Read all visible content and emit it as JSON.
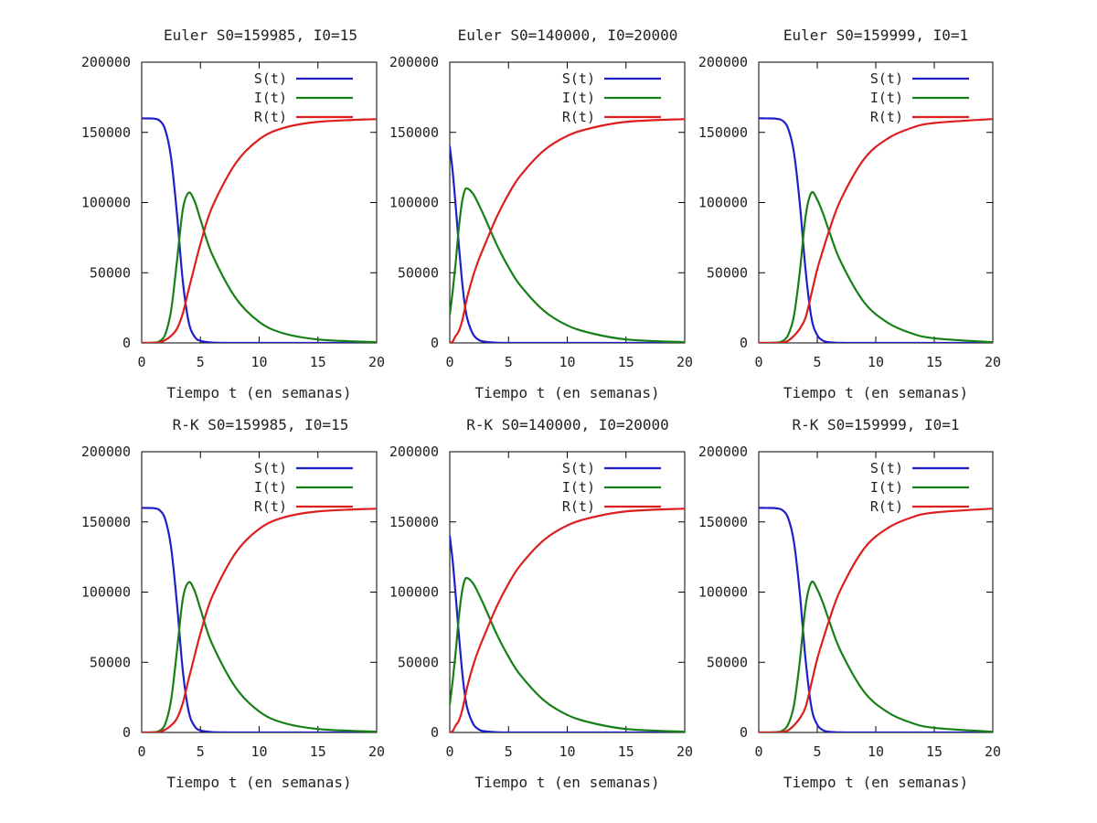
{
  "colors": {
    "S": "#1f1fc8",
    "I": "#168016",
    "R": "#dc1e1e"
  },
  "chart_data": [
    {
      "type": "line",
      "title": "Euler S0=159985, I0=15",
      "xlabel": "Tiempo t (en semanas)",
      "ylabel": "",
      "xlim": [
        0,
        20
      ],
      "ylim": [
        0,
        200000
      ],
      "xticks": [
        0,
        5,
        10,
        15,
        20
      ],
      "yticks": [
        0,
        50000,
        100000,
        150000,
        200000
      ],
      "legend": "top-right",
      "grid": false,
      "series": [
        {
          "name": "S(t)",
          "key": "S",
          "x": [
            0,
            0.5,
            1,
            1.5,
            2,
            2.5,
            3,
            3.5,
            4,
            4.5,
            5,
            6,
            8,
            10,
            12,
            15,
            20
          ],
          "values": [
            159985,
            159950,
            159800,
            158500,
            152000,
            132000,
            92000,
            44000,
            15000,
            4500,
            1500,
            250,
            20,
            0,
            0,
            0,
            0
          ]
        },
        {
          "name": "I(t)",
          "key": "I",
          "x": [
            0,
            0.5,
            1,
            1.5,
            2,
            2.5,
            3,
            3.5,
            4,
            4.5,
            5,
            6,
            8,
            10,
            12,
            15,
            20
          ],
          "values": [
            15,
            45,
            180,
            1100,
            6000,
            23000,
            58000,
            95000,
            107000,
            101000,
            88000,
            63000,
            32000,
            15000,
            7000,
            2500,
            500
          ]
        },
        {
          "name": "R(t)",
          "key": "R",
          "x": [
            0,
            0.5,
            1,
            1.5,
            2,
            2.5,
            3,
            3.5,
            4,
            4.5,
            5,
            6,
            8,
            10,
            12,
            15,
            20
          ],
          "values": [
            0,
            5,
            20,
            400,
            2000,
            5000,
            10000,
            21000,
            38000,
            54500,
            70500,
            96750,
            127980,
            145000,
            153000,
            157500,
            159500
          ]
        }
      ]
    },
    {
      "type": "line",
      "title": "Euler S0=140000, I0=20000",
      "xlabel": "Tiempo t (en semanas)",
      "ylabel": "",
      "xlim": [
        0,
        20
      ],
      "ylim": [
        0,
        200000
      ],
      "xticks": [
        0,
        5,
        10,
        15,
        20
      ],
      "yticks": [
        0,
        50000,
        100000,
        150000,
        200000
      ],
      "legend": "top-right",
      "grid": false,
      "series": [
        {
          "name": "S(t)",
          "key": "S",
          "x": [
            0,
            0.25,
            0.5,
            0.75,
            1,
            1.25,
            1.5,
            2,
            2.5,
            3,
            4,
            5,
            6,
            8,
            10,
            20
          ],
          "values": [
            140000,
            122000,
            98000,
            72000,
            48000,
            29000,
            17000,
            6000,
            2000,
            800,
            150,
            30,
            0,
            0,
            0,
            0
          ]
        },
        {
          "name": "I(t)",
          "key": "I",
          "x": [
            0,
            0.25,
            0.5,
            0.75,
            1,
            1.25,
            1.5,
            2,
            2.5,
            3,
            4,
            5,
            6,
            8,
            10,
            12,
            15,
            20
          ],
          "values": [
            20000,
            37000,
            57000,
            80000,
            98000,
            108000,
            110000,
            106000,
            98000,
            89000,
            70000,
            54000,
            41000,
            23000,
            12500,
            7000,
            2500,
            500
          ]
        },
        {
          "name": "R(t)",
          "key": "R",
          "x": [
            0,
            0.25,
            0.5,
            0.75,
            1,
            1.25,
            1.5,
            2,
            2.5,
            3,
            4,
            5,
            6,
            8,
            10,
            12,
            15,
            20
          ],
          "values": [
            0,
            1000,
            5000,
            8000,
            14000,
            23000,
            33000,
            48000,
            60000,
            70200,
            89850,
            105970,
            119000,
            137000,
            147500,
            153000,
            157500,
            159500
          ]
        }
      ]
    },
    {
      "type": "line",
      "title": "Euler S0=159999, I0=1",
      "xlabel": "Tiempo t (en semanas)",
      "ylabel": "",
      "xlim": [
        0,
        20
      ],
      "ylim": [
        0,
        200000
      ],
      "xticks": [
        0,
        5,
        10,
        15,
        20
      ],
      "yticks": [
        0,
        50000,
        100000,
        150000,
        200000
      ],
      "legend": "top-right",
      "grid": false,
      "series": [
        {
          "name": "S(t)",
          "key": "S",
          "x": [
            0,
            0.5,
            1,
            1.5,
            2,
            2.5,
            3,
            3.5,
            4,
            4.5,
            5,
            5.5,
            6,
            7,
            9,
            12,
            20
          ],
          "values": [
            159999,
            159990,
            159950,
            159700,
            158500,
            153000,
            136000,
            100000,
            52000,
            18000,
            5500,
            1600,
            500,
            60,
            0,
            0,
            0
          ]
        },
        {
          "name": "I(t)",
          "key": "I",
          "x": [
            0,
            0.5,
            1,
            1.5,
            2,
            2.5,
            3,
            3.5,
            4,
            4.5,
            5,
            5.5,
            6,
            7,
            9,
            11,
            13,
            15,
            20
          ],
          "values": [
            1,
            8,
            40,
            250,
            1200,
            5500,
            19000,
            50000,
            90000,
            107000,
            102000,
            92000,
            80000,
            58000,
            29000,
            14500,
            7000,
            3300,
            500
          ]
        },
        {
          "name": "R(t)",
          "key": "R",
          "x": [
            0,
            0.5,
            1,
            1.5,
            2,
            2.5,
            3,
            3.5,
            4,
            4.5,
            5,
            5.5,
            6,
            7,
            9,
            11,
            13,
            15,
            20
          ],
          "values": [
            0,
            2,
            10,
            50,
            300,
            1500,
            5000,
            10000,
            18000,
            35000,
            52500,
            66400,
            79500,
            101900,
            131000,
            145500,
            153000,
            156700,
            159500
          ]
        }
      ]
    },
    {
      "type": "line",
      "title": "R-K S0=159985, I0=15",
      "xlabel": "Tiempo t (en semanas)",
      "ylabel": "",
      "xlim": [
        0,
        20
      ],
      "ylim": [
        0,
        200000
      ],
      "xticks": [
        0,
        5,
        10,
        15,
        20
      ],
      "yticks": [
        0,
        50000,
        100000,
        150000,
        200000
      ],
      "legend": "top-right",
      "grid": false,
      "series": [
        {
          "name": "S(t)",
          "key": "S",
          "x": [
            0,
            0.5,
            1,
            1.5,
            2,
            2.5,
            3,
            3.5,
            4,
            4.5,
            5,
            6,
            8,
            10,
            12,
            15,
            20
          ],
          "values": [
            159985,
            159950,
            159800,
            158500,
            152000,
            132000,
            92000,
            44000,
            15000,
            4500,
            1500,
            250,
            20,
            0,
            0,
            0,
            0
          ]
        },
        {
          "name": "I(t)",
          "key": "I",
          "x": [
            0,
            0.5,
            1,
            1.5,
            2,
            2.5,
            3,
            3.5,
            4,
            4.5,
            5,
            6,
            8,
            10,
            12,
            15,
            20
          ],
          "values": [
            15,
            45,
            180,
            1100,
            6000,
            23000,
            58000,
            95000,
            107000,
            101000,
            88000,
            63000,
            32000,
            15000,
            7000,
            2500,
            500
          ]
        },
        {
          "name": "R(t)",
          "key": "R",
          "x": [
            0,
            0.5,
            1,
            1.5,
            2,
            2.5,
            3,
            3.5,
            4,
            4.5,
            5,
            6,
            8,
            10,
            12,
            15,
            20
          ],
          "values": [
            0,
            5,
            20,
            400,
            2000,
            5000,
            10000,
            21000,
            38000,
            54500,
            70500,
            96750,
            127980,
            145000,
            153000,
            157500,
            159500
          ]
        }
      ]
    },
    {
      "type": "line",
      "title": "R-K S0=140000, I0=20000",
      "xlabel": "Tiempo t (en semanas)",
      "ylabel": "",
      "xlim": [
        0,
        20
      ],
      "ylim": [
        0,
        200000
      ],
      "xticks": [
        0,
        5,
        10,
        15,
        20
      ],
      "yticks": [
        0,
        50000,
        100000,
        150000,
        200000
      ],
      "legend": "top-right",
      "grid": false,
      "series": [
        {
          "name": "S(t)",
          "key": "S",
          "x": [
            0,
            0.25,
            0.5,
            0.75,
            1,
            1.25,
            1.5,
            2,
            2.5,
            3,
            4,
            5,
            6,
            8,
            10,
            20
          ],
          "values": [
            140000,
            122000,
            98000,
            72000,
            48000,
            29000,
            17000,
            6000,
            2000,
            800,
            150,
            30,
            0,
            0,
            0,
            0
          ]
        },
        {
          "name": "I(t)",
          "key": "I",
          "x": [
            0,
            0.25,
            0.5,
            0.75,
            1,
            1.25,
            1.5,
            2,
            2.5,
            3,
            4,
            5,
            6,
            8,
            10,
            12,
            15,
            20
          ],
          "values": [
            20000,
            37000,
            57000,
            80000,
            98000,
            108000,
            110000,
            106000,
            98000,
            89000,
            70000,
            54000,
            41000,
            23000,
            12500,
            7000,
            2500,
            500
          ]
        },
        {
          "name": "R(t)",
          "key": "R",
          "x": [
            0,
            0.25,
            0.5,
            0.75,
            1,
            1.25,
            1.5,
            2,
            2.5,
            3,
            4,
            5,
            6,
            8,
            10,
            12,
            15,
            20
          ],
          "values": [
            0,
            1000,
            5000,
            8000,
            14000,
            23000,
            33000,
            48000,
            60000,
            70200,
            89850,
            105970,
            119000,
            137000,
            147500,
            153000,
            157500,
            159500
          ]
        }
      ]
    },
    {
      "type": "line",
      "title": "R-K S0=159999, I0=1",
      "xlabel": "Tiempo t (en semanas)",
      "ylabel": "",
      "xlim": [
        0,
        20
      ],
      "ylim": [
        0,
        200000
      ],
      "xticks": [
        0,
        5,
        10,
        15,
        20
      ],
      "yticks": [
        0,
        50000,
        100000,
        150000,
        200000
      ],
      "legend": "top-right",
      "grid": false,
      "series": [
        {
          "name": "S(t)",
          "key": "S",
          "x": [
            0,
            0.5,
            1,
            1.5,
            2,
            2.5,
            3,
            3.5,
            4,
            4.5,
            5,
            5.5,
            6,
            7,
            9,
            12,
            20
          ],
          "values": [
            159999,
            159990,
            159950,
            159700,
            158500,
            153000,
            136000,
            100000,
            52000,
            18000,
            5500,
            1600,
            500,
            60,
            0,
            0,
            0
          ]
        },
        {
          "name": "I(t)",
          "key": "I",
          "x": [
            0,
            0.5,
            1,
            1.5,
            2,
            2.5,
            3,
            3.5,
            4,
            4.5,
            5,
            5.5,
            6,
            7,
            9,
            11,
            13,
            15,
            20
          ],
          "values": [
            1,
            8,
            40,
            250,
            1200,
            5500,
            19000,
            50000,
            90000,
            107000,
            102000,
            92000,
            80000,
            58000,
            29000,
            14500,
            7000,
            3300,
            500
          ]
        },
        {
          "name": "R(t)",
          "key": "R",
          "x": [
            0,
            0.5,
            1,
            1.5,
            2,
            2.5,
            3,
            3.5,
            4,
            4.5,
            5,
            5.5,
            6,
            7,
            9,
            11,
            13,
            15,
            20
          ],
          "values": [
            0,
            2,
            10,
            50,
            300,
            1500,
            5000,
            10000,
            18000,
            35000,
            52500,
            66400,
            79500,
            101900,
            131000,
            145500,
            153000,
            156700,
            159500
          ]
        }
      ]
    }
  ]
}
